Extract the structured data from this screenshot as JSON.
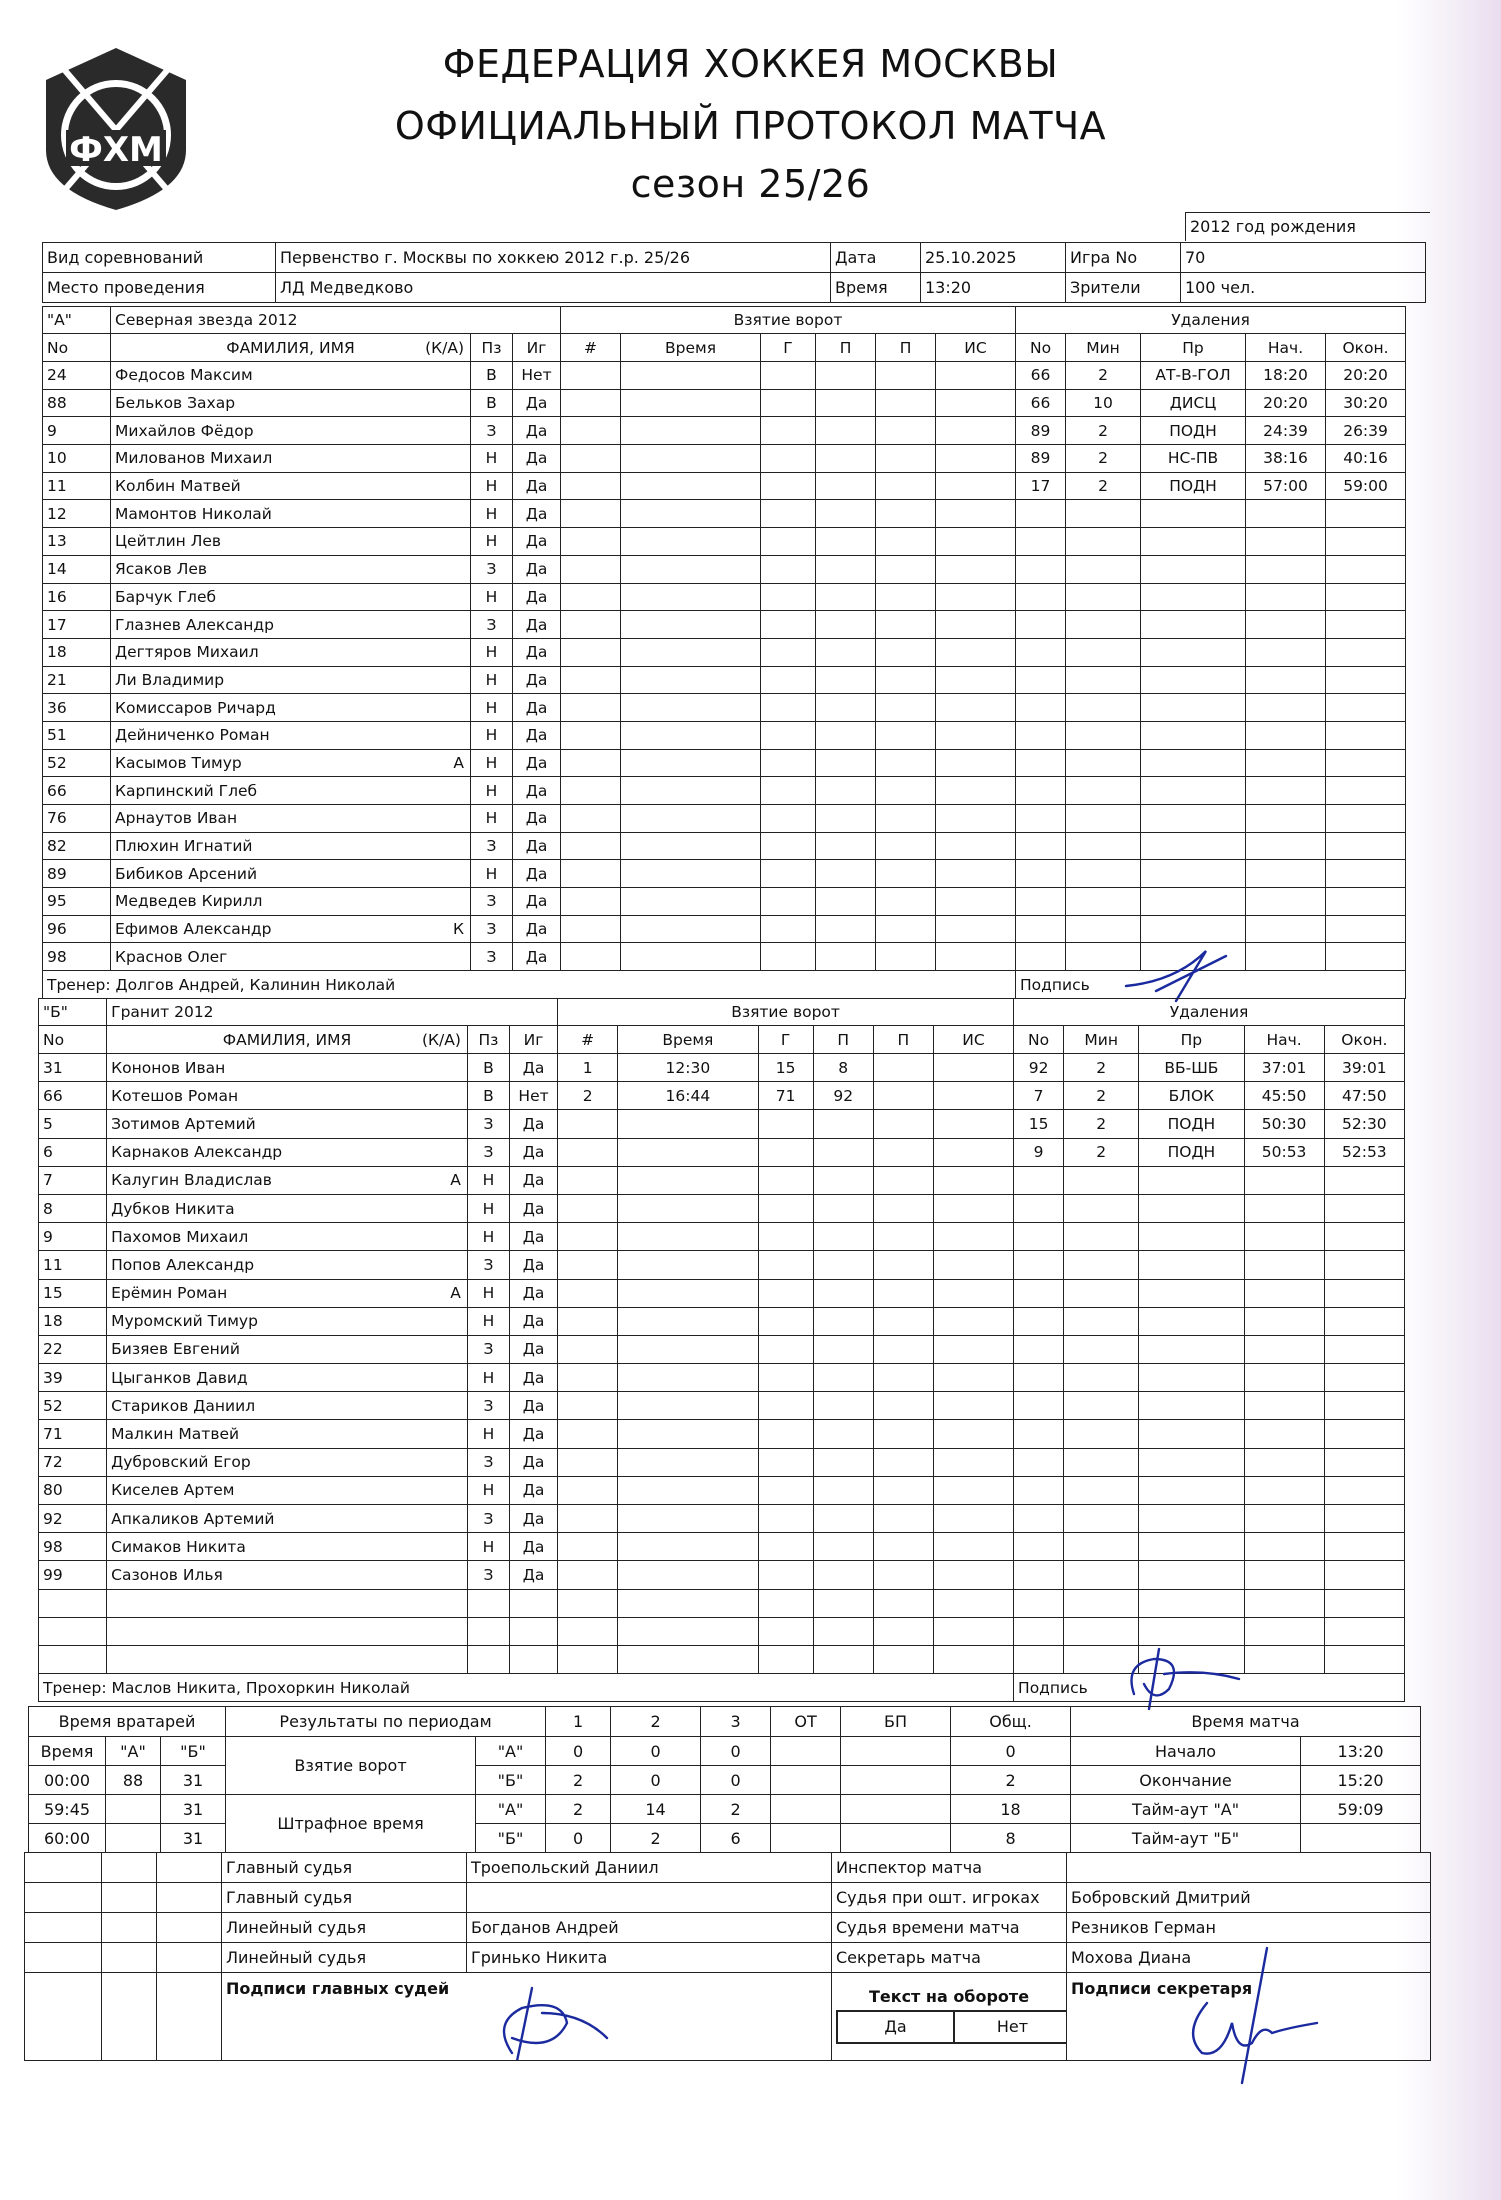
{
  "header": {
    "logo_text": "ФХМ",
    "federation": "ФЕДЕРАЦИЯ ХОККЕЯ МОСКВЫ",
    "protocol": "ОФИЦИАЛЬНЫЙ ПРОТОКОЛ МАТЧА",
    "season": "сезон 25/26",
    "birth_year": "2012 год рождения"
  },
  "info": {
    "competition_label": "Вид соревнований",
    "competition": "Первенство г. Москвы по хоккею 2012 г.р. 25/26",
    "date_label": "Дата",
    "date": "25.10.2025",
    "game_label": "Игра No",
    "game": "70",
    "venue_label": "Место проведения",
    "venue": "ЛД Медведково",
    "time_label": "Время",
    "time": "13:20",
    "spectators_label": "Зрители",
    "spectators": "100 чел."
  },
  "columns": {
    "no": "No",
    "name": "ФАМИЛИЯ, ИМЯ",
    "ka": "(К/А)",
    "pos": "Пз",
    "played": "Иг",
    "goals_title": "Взятие ворот",
    "goal_cols": [
      "#",
      "Время",
      "Г",
      "П",
      "П",
      "ИС"
    ],
    "pen_title": "Удаления",
    "pen_cols": [
      "No",
      "Мин",
      "Пр",
      "Нач.",
      "Окон."
    ],
    "signature": "Подпись"
  },
  "team_a": {
    "letter": "\"А\"",
    "name": "Северная звезда 2012",
    "coach": "Тренер: Долгов Андрей, Калинин Николай",
    "rows": 22,
    "players": [
      {
        "no": "24",
        "name": "Федосов Максим",
        "role": "",
        "pos": "В",
        "played": "Нет"
      },
      {
        "no": "88",
        "name": "Бельков Захар",
        "role": "",
        "pos": "В",
        "played": "Да"
      },
      {
        "no": "9",
        "name": "Михайлов Фёдор",
        "role": "",
        "pos": "З",
        "played": "Да"
      },
      {
        "no": "10",
        "name": "Милованов Михаил",
        "role": "",
        "pos": "Н",
        "played": "Да"
      },
      {
        "no": "11",
        "name": "Колбин Матвей",
        "role": "",
        "pos": "Н",
        "played": "Да"
      },
      {
        "no": "12",
        "name": "Мамонтов Николай",
        "role": "",
        "pos": "Н",
        "played": "Да"
      },
      {
        "no": "13",
        "name": "Цейтлин Лев",
        "role": "",
        "pos": "Н",
        "played": "Да"
      },
      {
        "no": "14",
        "name": "Ясаков Лев",
        "role": "",
        "pos": "З",
        "played": "Да"
      },
      {
        "no": "16",
        "name": "Барчук Глеб",
        "role": "",
        "pos": "Н",
        "played": "Да"
      },
      {
        "no": "17",
        "name": "Глазнев Александр",
        "role": "",
        "pos": "З",
        "played": "Да"
      },
      {
        "no": "18",
        "name": "Дегтяров Михаил",
        "role": "",
        "pos": "Н",
        "played": "Да"
      },
      {
        "no": "21",
        "name": "Ли Владимир",
        "role": "",
        "pos": "Н",
        "played": "Да"
      },
      {
        "no": "36",
        "name": "Комиссаров Ричард",
        "role": "",
        "pos": "Н",
        "played": "Да"
      },
      {
        "no": "51",
        "name": "Дейниченко Роман",
        "role": "",
        "pos": "Н",
        "played": "Да"
      },
      {
        "no": "52",
        "name": "Касымов Тимур",
        "role": "А",
        "pos": "Н",
        "played": "Да"
      },
      {
        "no": "66",
        "name": "Карпинский Глеб",
        "role": "",
        "pos": "Н",
        "played": "Да"
      },
      {
        "no": "76",
        "name": "Арнаутов Иван",
        "role": "",
        "pos": "Н",
        "played": "Да"
      },
      {
        "no": "82",
        "name": "Плюхин Игнатий",
        "role": "",
        "pos": "З",
        "played": "Да"
      },
      {
        "no": "89",
        "name": "Бибиков Арсений",
        "role": "",
        "pos": "Н",
        "played": "Да"
      },
      {
        "no": "95",
        "name": "Медведев Кирилл",
        "role": "",
        "pos": "З",
        "played": "Да"
      },
      {
        "no": "96",
        "name": "Ефимов Александр",
        "role": "К",
        "pos": "З",
        "played": "Да"
      },
      {
        "no": "98",
        "name": "Краснов Олег",
        "role": "",
        "pos": "З",
        "played": "Да"
      }
    ],
    "goals": [],
    "penalties": [
      [
        "66",
        "2",
        "АТ-В-ГОЛ",
        "18:20",
        "20:20"
      ],
      [
        "66",
        "10",
        "ДИСЦ",
        "20:20",
        "30:20"
      ],
      [
        "89",
        "2",
        "ПОДН",
        "24:39",
        "26:39"
      ],
      [
        "89",
        "2",
        "НС-ПВ",
        "38:16",
        "40:16"
      ],
      [
        "17",
        "2",
        "ПОДН",
        "57:00",
        "59:00"
      ]
    ]
  },
  "team_b": {
    "letter": "\"Б\"",
    "name": "Гранит 2012",
    "coach": "Тренер: Маслов Никита, Прохоркин Николай",
    "rows": 22,
    "players": [
      {
        "no": "31",
        "name": "Кононов Иван",
        "role": "",
        "pos": "В",
        "played": "Да"
      },
      {
        "no": "66",
        "name": "Котешов Роман",
        "role": "",
        "pos": "В",
        "played": "Нет"
      },
      {
        "no": "5",
        "name": "Зотимов Артемий",
        "role": "",
        "pos": "З",
        "played": "Да"
      },
      {
        "no": "6",
        "name": "Карнаков Александр",
        "role": "",
        "pos": "З",
        "played": "Да"
      },
      {
        "no": "7",
        "name": "Калугин Владислав",
        "role": "А",
        "pos": "Н",
        "played": "Да"
      },
      {
        "no": "8",
        "name": "Дубков Никита",
        "role": "",
        "pos": "Н",
        "played": "Да"
      },
      {
        "no": "9",
        "name": "Пахомов Михаил",
        "role": "",
        "pos": "Н",
        "played": "Да"
      },
      {
        "no": "11",
        "name": "Попов Александр",
        "role": "",
        "pos": "З",
        "played": "Да"
      },
      {
        "no": "15",
        "name": "Ерёмин Роман",
        "role": "А",
        "pos": "Н",
        "played": "Да"
      },
      {
        "no": "18",
        "name": "Муромский Тимур",
        "role": "",
        "pos": "Н",
        "played": "Да"
      },
      {
        "no": "22",
        "name": "Бизяев Евгений",
        "role": "",
        "pos": "З",
        "played": "Да"
      },
      {
        "no": "39",
        "name": "Цыганков Давид",
        "role": "",
        "pos": "Н",
        "played": "Да"
      },
      {
        "no": "52",
        "name": "Стариков Даниил",
        "role": "",
        "pos": "З",
        "played": "Да"
      },
      {
        "no": "71",
        "name": "Малкин Матвей",
        "role": "",
        "pos": "Н",
        "played": "Да"
      },
      {
        "no": "72",
        "name": "Дубровский Егор",
        "role": "",
        "pos": "З",
        "played": "Да"
      },
      {
        "no": "80",
        "name": "Киселев Артем",
        "role": "",
        "pos": "Н",
        "played": "Да"
      },
      {
        "no": "92",
        "name": "Апкаликов Артемий",
        "role": "",
        "pos": "З",
        "played": "Да"
      },
      {
        "no": "98",
        "name": "Симаков Никита",
        "role": "",
        "pos": "Н",
        "played": "Да"
      },
      {
        "no": "99",
        "name": "Сазонов Илья",
        "role": "",
        "pos": "З",
        "played": "Да"
      }
    ],
    "goals": [
      [
        "1",
        "12:30",
        "15",
        "8",
        "",
        ""
      ],
      [
        "2",
        "16:44",
        "71",
        "92",
        "",
        ""
      ]
    ],
    "penalties": [
      [
        "92",
        "2",
        "ВБ-ШБ",
        "37:01",
        "39:01"
      ],
      [
        "7",
        "2",
        "БЛОК",
        "45:50",
        "47:50"
      ],
      [
        "15",
        "2",
        "ПОДН",
        "50:30",
        "52:30"
      ],
      [
        "9",
        "2",
        "ПОДН",
        "50:53",
        "52:53"
      ]
    ]
  },
  "goalies": {
    "title": "Время вратарей",
    "cols": [
      "Время",
      "\"А\"",
      "\"Б\""
    ],
    "rows": [
      [
        "00:00",
        "88",
        "31"
      ],
      [
        "59:45",
        "",
        "31"
      ],
      [
        "60:00",
        "",
        "31"
      ]
    ]
  },
  "periods": {
    "title": "Результаты по периодам",
    "cols": [
      "1",
      "2",
      "3",
      "ОТ",
      "БП",
      "Общ."
    ],
    "goals_label": "Взятие ворот",
    "penalty_label": "Штрафное время",
    "team_a": "\"А\"",
    "team_b": "\"Б\"",
    "goals_a": [
      "0",
      "0",
      "0",
      "",
      "",
      "0"
    ],
    "goals_b": [
      "2",
      "0",
      "0",
      "",
      "",
      "2"
    ],
    "pen_a": [
      "2",
      "14",
      "2",
      "",
      "",
      "18"
    ],
    "pen_b": [
      "0",
      "2",
      "6",
      "",
      "",
      "8"
    ]
  },
  "match_time": {
    "title": "Время матча",
    "rows": [
      [
        "Начало",
        "13:20"
      ],
      [
        "Окончание",
        "15:20"
      ],
      [
        "Тайм-аут \"А\"",
        "59:09"
      ],
      [
        "Тайм-аут \"Б\"",
        ""
      ]
    ]
  },
  "officials": {
    "left": [
      [
        "Главный судья",
        "Троепольский Даниил"
      ],
      [
        "Главный судья",
        ""
      ],
      [
        "Линейный судья",
        "Богданов Андрей"
      ],
      [
        "Линейный судья",
        "Гринько Никита"
      ]
    ],
    "right": [
      [
        "Инспектор матча",
        ""
      ],
      [
        "Судья при ошт. игроках",
        "Бобровский Дмитрий"
      ],
      [
        "Судья времени матча",
        "Резников Герман"
      ],
      [
        "Секретарь матча",
        "Мохова Диана"
      ]
    ],
    "referee_signatures": "Подписи главных судей",
    "reverse_text": "Текст на обороте",
    "yes": "Да",
    "no": "Нет",
    "secretary_signature": "Подписи секретаря"
  },
  "colors": {
    "ink": "#111111",
    "signature": "#1b2a9e"
  }
}
